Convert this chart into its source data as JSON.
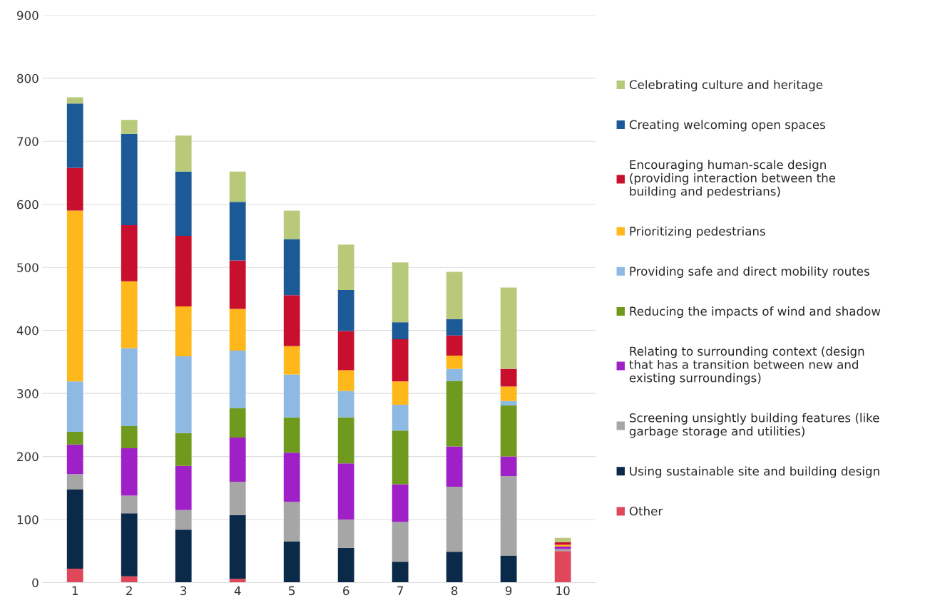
{
  "chart_data": {
    "type": "bar",
    "stacked": true,
    "categories": [
      "1",
      "2",
      "3",
      "4",
      "5",
      "6",
      "7",
      "8",
      "9",
      "10"
    ],
    "series": [
      {
        "name": "Other",
        "color": "#e0475b",
        "values": [
          22,
          10,
          0,
          6,
          0,
          0,
          0,
          0,
          0,
          50
        ]
      },
      {
        "name": "Using sustainable site and building design",
        "color": "#0b2a4a",
        "values": [
          126,
          100,
          84,
          101,
          65,
          55,
          33,
          49,
          43,
          0
        ]
      },
      {
        "name": "Screening unsightly building features (like\ngarbage storage and utilities)",
        "color": "#a6a6a6",
        "values": [
          24,
          28,
          31,
          53,
          63,
          45,
          63,
          103,
          126,
          3
        ]
      },
      {
        "name": "Relating to surrounding context (design\nthat has a transition between new and\nexisting surroundings)",
        "color": "#a020c8",
        "values": [
          47,
          75,
          70,
          70,
          78,
          89,
          60,
          64,
          31,
          4
        ]
      },
      {
        "name": "Reducing the impacts of wind and shadow",
        "color": "#6f9a1d",
        "values": [
          20,
          35,
          52,
          47,
          56,
          73,
          85,
          104,
          81,
          0
        ]
      },
      {
        "name": "Providing safe and direct mobility routes",
        "color": "#8db9e2",
        "values": [
          80,
          124,
          122,
          91,
          68,
          42,
          41,
          19,
          7,
          0
        ]
      },
      {
        "name": "Prioritizing pedestrians",
        "color": "#ffb81c",
        "values": [
          271,
          106,
          79,
          66,
          45,
          33,
          37,
          21,
          23,
          3
        ]
      },
      {
        "name": "Encouraging human-scale design\n(providing interaction between the\nbuilding and pedestrians)",
        "color": "#c8102e",
        "values": [
          68,
          89,
          112,
          77,
          81,
          62,
          67,
          32,
          28,
          4
        ]
      },
      {
        "name": "Creating welcoming open spaces",
        "color": "#1b5a96",
        "values": [
          102,
          145,
          102,
          93,
          89,
          65,
          27,
          26,
          0,
          0
        ]
      },
      {
        "name": "Celebrating culture and heritage",
        "color": "#b8c97a",
        "values": [
          10,
          22,
          57,
          48,
          45,
          72,
          95,
          75,
          129,
          7
        ]
      }
    ],
    "ylim": [
      0,
      900
    ],
    "yticks": [
      0,
      100,
      200,
      300,
      400,
      500,
      600,
      700,
      800,
      900
    ],
    "grid": "y",
    "legend": "right"
  }
}
